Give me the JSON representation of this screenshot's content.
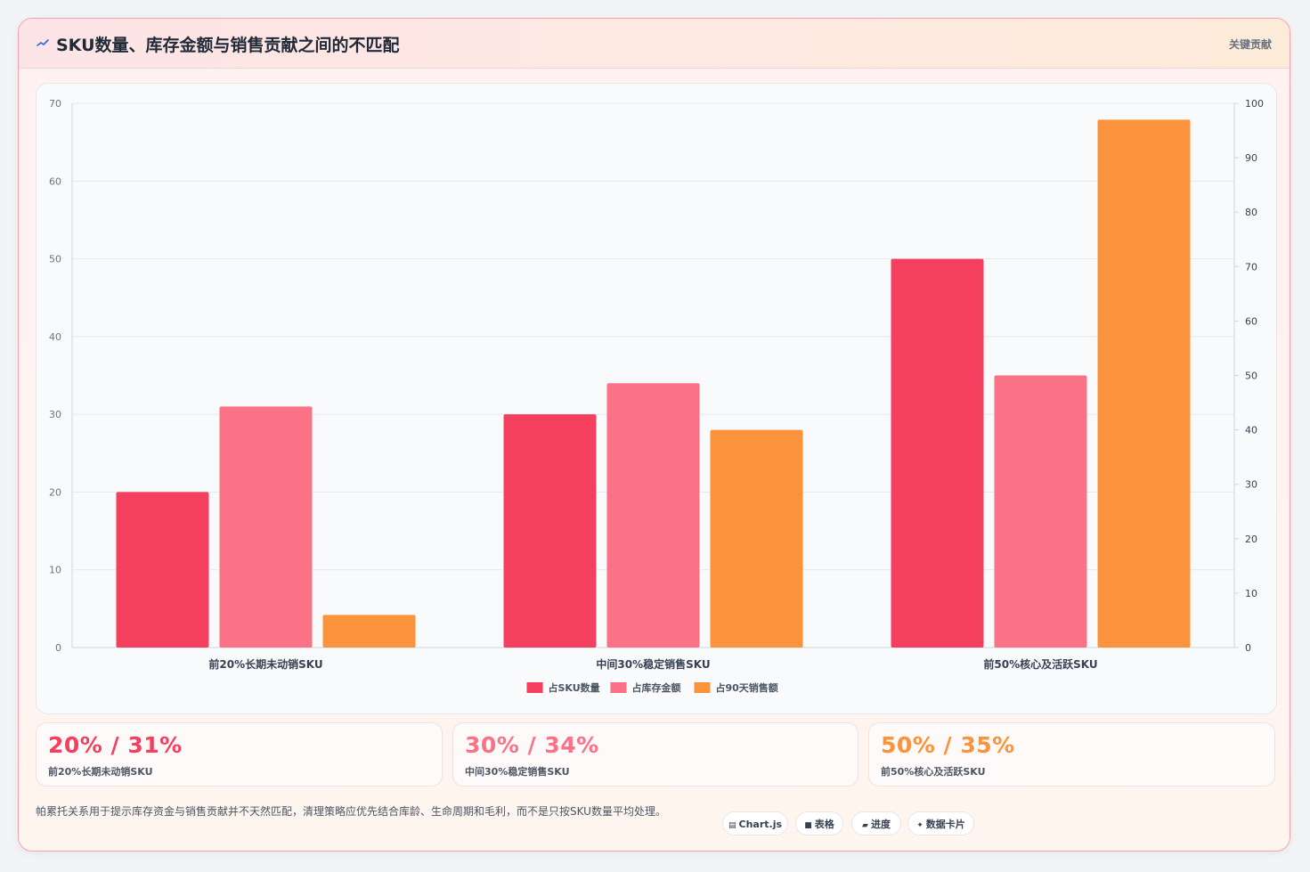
{
  "header": {
    "title": "SKU数量、库存金额与销售贡献之间的不匹配",
    "tag": "关键贡献",
    "icon": "trend-line-icon"
  },
  "chart_data": {
    "type": "bar",
    "categories": [
      "前20%长期未动销SKU",
      "中间30%稳定销售SKU",
      "前50%核心及活跃SKU"
    ],
    "series": [
      {
        "name": "占SKU数量",
        "values": [
          20,
          30,
          50
        ],
        "axis": "left",
        "color": "#f43f5e"
      },
      {
        "name": "占库存金额",
        "values": [
          31,
          34,
          35
        ],
        "axis": "left",
        "color": "#fb7185"
      },
      {
        "name": "占90天销售额",
        "values": [
          6,
          40,
          97
        ],
        "axis": "right",
        "color": "#fb923c"
      }
    ],
    "y_left": {
      "range": [
        0,
        70
      ],
      "ticks": [
        "0",
        "10",
        "20",
        "30",
        "40",
        "50",
        "60",
        "70"
      ]
    },
    "y_right": {
      "range": [
        0,
        100
      ],
      "ticks": [
        "0",
        "10",
        "20",
        "30",
        "40",
        "50",
        "60",
        "70",
        "80",
        "90",
        "100"
      ]
    },
    "grid": true,
    "legend_position": "bottom"
  },
  "stats": [
    {
      "value": "20% / 31%",
      "label": "前20%长期未动销SKU",
      "color": "#f43f5e"
    },
    {
      "value": "30% / 34%",
      "label": "中间30%稳定销售SKU",
      "color": "#fb7185"
    },
    {
      "value": "50% / 35%",
      "label": "前50%核心及活跃SKU",
      "color": "#fb923c"
    }
  ],
  "footnote": "帕累托关系用于提示库存资金与销售贡献并不天然匹配，清理策略应优先结合库龄、生命周期和毛利，而不是只按SKU数量平均处理。",
  "badges": [
    {
      "label": "Chart.js",
      "icon": "chart-icon",
      "glyph": "▤"
    },
    {
      "label": "表格",
      "icon": "table-icon",
      "glyph": "■"
    },
    {
      "label": "进度",
      "icon": "progress-icon",
      "glyph": "▰"
    },
    {
      "label": "数据卡片",
      "icon": "card-icon",
      "glyph": "✦"
    }
  ]
}
